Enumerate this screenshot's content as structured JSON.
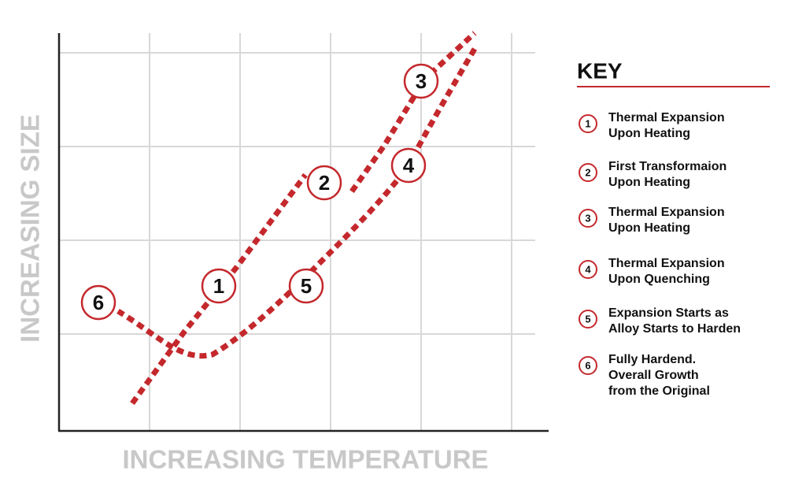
{
  "chart": {
    "x_axis_label": "INCREASING TEMPERATURE",
    "y_axis_label": "INCREASING SIZE",
    "markers": [
      "1",
      "2",
      "3",
      "4",
      "5",
      "6"
    ]
  },
  "key": {
    "title": "KEY",
    "items": [
      {
        "number": "1",
        "lines": [
          "Thermal Expansion",
          "Upon Heating"
        ]
      },
      {
        "number": "2",
        "lines": [
          "First Transformaion",
          "Upon Heating"
        ]
      },
      {
        "number": "3",
        "lines": [
          "Thermal Expansion",
          "Upon Heating"
        ]
      },
      {
        "number": "4",
        "lines": [
          "Thermal Expansion",
          "Upon Quenching"
        ]
      },
      {
        "number": "5",
        "lines": [
          "Expansion Starts as",
          "Alloy Starts to Harden"
        ]
      },
      {
        "number": "6",
        "lines": [
          "Fully Hardend.",
          "Overall Growth",
          "from the Original"
        ]
      }
    ]
  }
}
